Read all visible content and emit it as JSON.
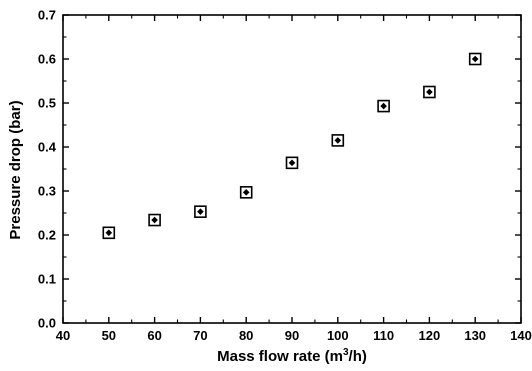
{
  "chart_data": {
    "type": "scatter",
    "xlabel": "Mass flow rate (m",
    "xlabel_sup": "3",
    "xlabel_tail": "/h)",
    "ylabel": "Pressure drop (bar)",
    "xlim": [
      40,
      140
    ],
    "ylim": [
      0.0,
      0.7
    ],
    "xticks": [
      "40",
      "50",
      "60",
      "70",
      "80",
      "90",
      "100",
      "110",
      "120",
      "130",
      "140"
    ],
    "yticks": [
      "0.0",
      "0.1",
      "0.2",
      "0.3",
      "0.4",
      "0.5",
      "0.6",
      "0.7"
    ],
    "grid": false,
    "legend": "none",
    "marker": "square-with-dot",
    "colors": {
      "marker": "#000000",
      "axes": "#000000"
    },
    "series": [
      {
        "x": [
          50,
          60,
          70,
          80,
          90,
          100,
          110,
          120,
          130
        ],
        "y": [
          0.205,
          0.234,
          0.253,
          0.297,
          0.364,
          0.415,
          0.493,
          0.525,
          0.6
        ]
      }
    ]
  }
}
